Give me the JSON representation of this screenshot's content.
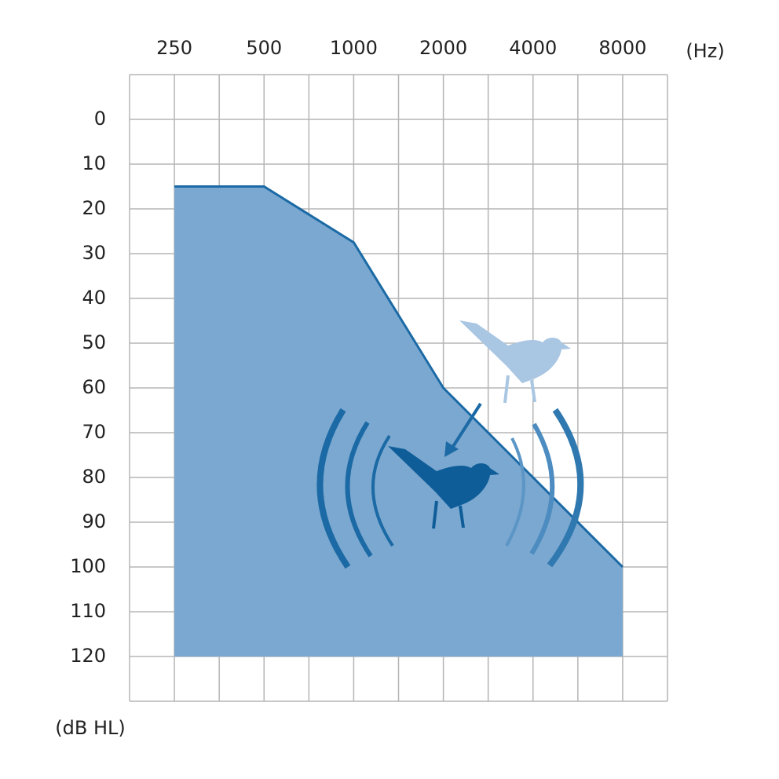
{
  "chart_data": {
    "type": "area",
    "x_label": "(Hz)",
    "y_label": "(dB HL)",
    "x": [
      250,
      500,
      1000,
      2000,
      8000
    ],
    "values": [
      15,
      15,
      27.5,
      60,
      100
    ],
    "color": "#1b6aa5",
    "fill": "#7ba8d0",
    "xscale": "log",
    "xlim": [
      176.78,
      11313.71
    ],
    "xticks": [
      250,
      500,
      1000,
      2000,
      4000,
      8000
    ],
    "ylim": [
      -10,
      130
    ],
    "yticks": [
      0,
      10,
      20,
      30,
      40,
      50,
      60,
      70,
      80,
      90,
      100,
      110,
      120
    ],
    "y_inverted": true,
    "grid": true
  }
}
